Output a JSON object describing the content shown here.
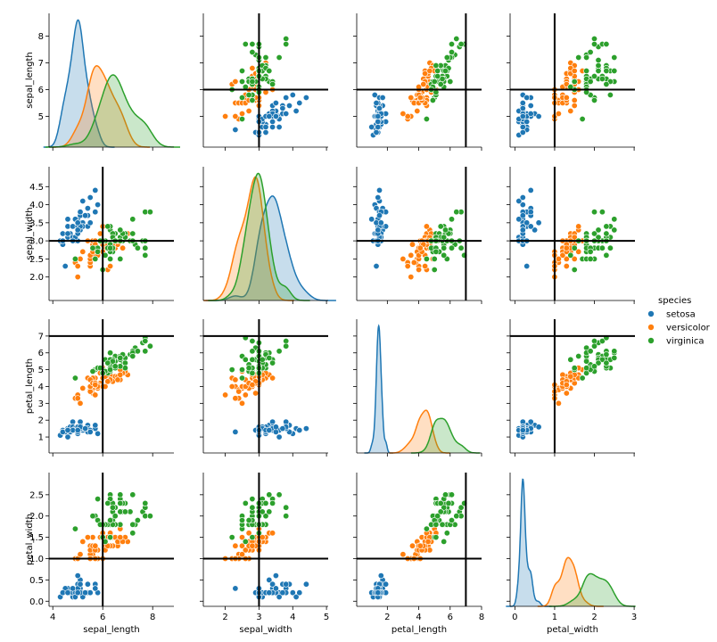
{
  "chart_data": {
    "type": "scatter",
    "kind": "pairplot",
    "hue": "species",
    "variables": [
      "sepal_length",
      "sepal_width",
      "petal_length",
      "petal_width"
    ],
    "ranges": {
      "sepal_length": [
        3.85,
        8.85
      ],
      "sepal_width": [
        1.35,
        5.05
      ],
      "petal_length": [
        0.05,
        8.0
      ],
      "petal_width": [
        -0.12,
        3.02
      ]
    },
    "ticks": {
      "sepal_length": [
        4,
        6,
        8
      ],
      "sepal_width": [
        2,
        3,
        4,
        5
      ],
      "petal_length": [
        2,
        4,
        6,
        8
      ],
      "petal_width": [
        0,
        1,
        2,
        3
      ]
    },
    "y_ticks": {
      "sepal_length": [
        "5",
        "6",
        "7",
        "8"
      ],
      "sepal_width": [
        "2.0",
        "2.5",
        "3.0",
        "3.5",
        "4.0",
        "4.5"
      ],
      "petal_length": [
        "1",
        "2",
        "3",
        "4",
        "5",
        "6",
        "7"
      ],
      "petal_width": [
        "0.0",
        "0.5",
        "1.0",
        "1.5",
        "2.0",
        "2.5"
      ]
    },
    "reference_lines": {
      "sepal_length": 6,
      "sepal_width": 3,
      "petal_length": 7,
      "petal_width": 1
    },
    "legend": {
      "title": "species",
      "position": "right",
      "entries": [
        {
          "label": "setosa",
          "color": "#1f77b4"
        },
        {
          "label": "versicolor",
          "color": "#ff7f0e"
        },
        {
          "label": "virginica",
          "color": "#2ca02c"
        }
      ]
    },
    "series": [
      {
        "name": "setosa",
        "color": "#1f77b4",
        "points": [
          [
            5.1,
            3.5,
            1.4,
            0.2
          ],
          [
            4.9,
            3.0,
            1.4,
            0.2
          ],
          [
            4.7,
            3.2,
            1.3,
            0.2
          ],
          [
            4.6,
            3.1,
            1.5,
            0.2
          ],
          [
            5.0,
            3.6,
            1.4,
            0.2
          ],
          [
            5.4,
            3.9,
            1.7,
            0.4
          ],
          [
            4.6,
            3.4,
            1.4,
            0.3
          ],
          [
            5.0,
            3.4,
            1.5,
            0.2
          ],
          [
            4.4,
            2.9,
            1.4,
            0.2
          ],
          [
            4.9,
            3.1,
            1.5,
            0.1
          ],
          [
            5.4,
            3.7,
            1.5,
            0.2
          ],
          [
            4.8,
            3.4,
            1.6,
            0.2
          ],
          [
            4.8,
            3.0,
            1.4,
            0.1
          ],
          [
            4.3,
            3.0,
            1.1,
            0.1
          ],
          [
            5.8,
            4.0,
            1.2,
            0.2
          ],
          [
            5.7,
            4.4,
            1.5,
            0.4
          ],
          [
            5.4,
            3.9,
            1.3,
            0.4
          ],
          [
            5.1,
            3.5,
            1.4,
            0.3
          ],
          [
            5.7,
            3.8,
            1.7,
            0.3
          ],
          [
            5.1,
            3.8,
            1.5,
            0.3
          ],
          [
            5.4,
            3.4,
            1.7,
            0.2
          ],
          [
            5.1,
            3.7,
            1.5,
            0.4
          ],
          [
            4.6,
            3.6,
            1.0,
            0.2
          ],
          [
            5.1,
            3.3,
            1.7,
            0.5
          ],
          [
            4.8,
            3.4,
            1.9,
            0.2
          ],
          [
            5.0,
            3.0,
            1.6,
            0.2
          ],
          [
            5.0,
            3.4,
            1.6,
            0.4
          ],
          [
            5.2,
            3.5,
            1.5,
            0.2
          ],
          [
            5.2,
            3.4,
            1.4,
            0.2
          ],
          [
            4.7,
            3.2,
            1.6,
            0.2
          ],
          [
            4.8,
            3.1,
            1.6,
            0.2
          ],
          [
            5.4,
            3.4,
            1.5,
            0.4
          ],
          [
            5.2,
            4.1,
            1.5,
            0.1
          ],
          [
            5.5,
            4.2,
            1.4,
            0.2
          ],
          [
            4.9,
            3.1,
            1.5,
            0.2
          ],
          [
            5.0,
            3.2,
            1.2,
            0.2
          ],
          [
            5.5,
            3.5,
            1.3,
            0.2
          ],
          [
            4.9,
            3.6,
            1.4,
            0.1
          ],
          [
            4.4,
            3.0,
            1.3,
            0.2
          ],
          [
            5.1,
            3.4,
            1.5,
            0.2
          ],
          [
            5.0,
            3.5,
            1.3,
            0.3
          ],
          [
            4.5,
            2.3,
            1.3,
            0.3
          ],
          [
            4.4,
            3.2,
            1.3,
            0.2
          ],
          [
            5.0,
            3.5,
            1.6,
            0.6
          ],
          [
            5.1,
            3.8,
            1.9,
            0.4
          ],
          [
            4.8,
            3.0,
            1.4,
            0.3
          ],
          [
            5.1,
            3.8,
            1.6,
            0.2
          ],
          [
            4.6,
            3.2,
            1.4,
            0.2
          ],
          [
            5.3,
            3.7,
            1.5,
            0.2
          ],
          [
            5.0,
            3.3,
            1.4,
            0.2
          ]
        ]
      },
      {
        "name": "versicolor",
        "color": "#ff7f0e",
        "points": [
          [
            7.0,
            3.2,
            4.7,
            1.4
          ],
          [
            6.4,
            3.2,
            4.5,
            1.5
          ],
          [
            6.9,
            3.1,
            4.9,
            1.5
          ],
          [
            5.5,
            2.3,
            4.0,
            1.3
          ],
          [
            6.5,
            2.8,
            4.6,
            1.5
          ],
          [
            5.7,
            2.8,
            4.5,
            1.3
          ],
          [
            6.3,
            3.3,
            4.7,
            1.6
          ],
          [
            4.9,
            2.4,
            3.3,
            1.0
          ],
          [
            6.6,
            2.9,
            4.6,
            1.3
          ],
          [
            5.2,
            2.7,
            3.9,
            1.4
          ],
          [
            5.0,
            2.0,
            3.5,
            1.0
          ],
          [
            5.9,
            3.0,
            4.2,
            1.5
          ],
          [
            6.0,
            2.2,
            4.0,
            1.0
          ],
          [
            6.1,
            2.9,
            4.7,
            1.4
          ],
          [
            5.6,
            2.9,
            3.6,
            1.3
          ],
          [
            6.7,
            3.1,
            4.4,
            1.4
          ],
          [
            5.6,
            3.0,
            4.5,
            1.5
          ],
          [
            5.8,
            2.7,
            4.1,
            1.0
          ],
          [
            6.2,
            2.2,
            4.5,
            1.5
          ],
          [
            5.6,
            2.5,
            3.9,
            1.1
          ],
          [
            5.9,
            3.2,
            4.8,
            1.8
          ],
          [
            6.1,
            2.8,
            4.0,
            1.3
          ],
          [
            6.3,
            2.5,
            4.9,
            1.5
          ],
          [
            6.1,
            2.8,
            4.7,
            1.2
          ],
          [
            6.4,
            2.9,
            4.3,
            1.3
          ],
          [
            6.6,
            3.0,
            4.4,
            1.4
          ],
          [
            6.8,
            2.8,
            4.8,
            1.4
          ],
          [
            6.7,
            3.0,
            5.0,
            1.7
          ],
          [
            6.0,
            2.9,
            4.5,
            1.5
          ],
          [
            5.7,
            2.6,
            3.5,
            1.0
          ],
          [
            5.5,
            2.4,
            3.8,
            1.1
          ],
          [
            5.5,
            2.4,
            3.7,
            1.0
          ],
          [
            5.8,
            2.7,
            3.9,
            1.2
          ],
          [
            6.0,
            2.7,
            5.1,
            1.6
          ],
          [
            5.4,
            3.0,
            4.5,
            1.5
          ],
          [
            6.0,
            3.4,
            4.5,
            1.6
          ],
          [
            6.7,
            3.1,
            4.7,
            1.5
          ],
          [
            6.3,
            2.3,
            4.4,
            1.3
          ],
          [
            5.6,
            3.0,
            4.1,
            1.3
          ],
          [
            5.5,
            2.5,
            4.0,
            1.3
          ],
          [
            5.5,
            2.6,
            4.4,
            1.2
          ],
          [
            6.1,
            3.0,
            4.6,
            1.4
          ],
          [
            5.8,
            2.6,
            4.0,
            1.2
          ],
          [
            5.0,
            2.3,
            3.3,
            1.0
          ],
          [
            5.6,
            2.7,
            4.2,
            1.3
          ],
          [
            5.7,
            3.0,
            4.2,
            1.2
          ],
          [
            5.7,
            2.9,
            4.2,
            1.3
          ],
          [
            6.2,
            2.9,
            4.3,
            1.3
          ],
          [
            5.1,
            2.5,
            3.0,
            1.1
          ],
          [
            5.7,
            2.8,
            4.1,
            1.3
          ]
        ]
      },
      {
        "name": "virginica",
        "color": "#2ca02c",
        "points": [
          [
            6.3,
            3.3,
            6.0,
            2.5
          ],
          [
            5.8,
            2.7,
            5.1,
            1.9
          ],
          [
            7.1,
            3.0,
            5.9,
            2.1
          ],
          [
            6.3,
            2.9,
            5.6,
            1.8
          ],
          [
            6.5,
            3.0,
            5.8,
            2.2
          ],
          [
            7.6,
            3.0,
            6.6,
            2.1
          ],
          [
            4.9,
            2.5,
            4.5,
            1.7
          ],
          [
            7.3,
            2.9,
            6.3,
            1.8
          ],
          [
            6.7,
            2.5,
            5.8,
            1.8
          ],
          [
            7.2,
            3.6,
            6.1,
            2.5
          ],
          [
            6.5,
            3.2,
            5.1,
            2.0
          ],
          [
            6.4,
            2.7,
            5.3,
            1.9
          ],
          [
            6.8,
            3.0,
            5.5,
            2.1
          ],
          [
            5.7,
            2.5,
            5.0,
            2.0
          ],
          [
            5.8,
            2.8,
            5.1,
            2.4
          ],
          [
            6.4,
            3.2,
            5.3,
            2.3
          ],
          [
            6.5,
            3.0,
            5.5,
            1.8
          ],
          [
            7.7,
            3.8,
            6.7,
            2.2
          ],
          [
            7.7,
            2.6,
            6.9,
            2.3
          ],
          [
            6.0,
            2.2,
            5.0,
            1.5
          ],
          [
            6.9,
            3.2,
            5.7,
            2.3
          ],
          [
            5.6,
            2.8,
            4.9,
            2.0
          ],
          [
            7.7,
            2.8,
            6.7,
            2.0
          ],
          [
            6.3,
            2.7,
            4.9,
            1.8
          ],
          [
            6.7,
            3.3,
            5.7,
            2.1
          ],
          [
            7.2,
            3.2,
            6.0,
            1.8
          ],
          [
            6.2,
            2.8,
            4.8,
            1.8
          ],
          [
            6.1,
            3.0,
            4.9,
            1.8
          ],
          [
            6.4,
            2.8,
            5.6,
            2.1
          ],
          [
            7.2,
            3.0,
            5.8,
            1.6
          ],
          [
            7.4,
            2.8,
            6.1,
            1.9
          ],
          [
            7.9,
            3.8,
            6.4,
            2.0
          ],
          [
            6.4,
            2.8,
            5.6,
            2.2
          ],
          [
            6.3,
            2.8,
            5.1,
            1.5
          ],
          [
            6.1,
            2.6,
            5.6,
            1.4
          ],
          [
            7.7,
            3.0,
            6.1,
            2.3
          ],
          [
            6.3,
            3.4,
            5.6,
            2.4
          ],
          [
            6.4,
            3.1,
            5.5,
            1.8
          ],
          [
            6.0,
            3.0,
            4.8,
            1.8
          ],
          [
            6.9,
            3.1,
            5.4,
            2.1
          ],
          [
            6.7,
            3.1,
            5.6,
            2.4
          ],
          [
            6.9,
            3.1,
            5.1,
            2.3
          ],
          [
            5.8,
            2.7,
            5.1,
            1.9
          ],
          [
            6.8,
            3.2,
            5.9,
            2.3
          ],
          [
            6.7,
            3.3,
            5.7,
            2.5
          ],
          [
            6.7,
            3.0,
            5.2,
            2.3
          ],
          [
            6.3,
            2.5,
            5.0,
            1.9
          ],
          [
            6.5,
            3.0,
            5.2,
            2.0
          ],
          [
            6.2,
            3.4,
            5.4,
            2.3
          ],
          [
            5.9,
            3.0,
            5.1,
            1.8
          ]
        ]
      }
    ]
  }
}
